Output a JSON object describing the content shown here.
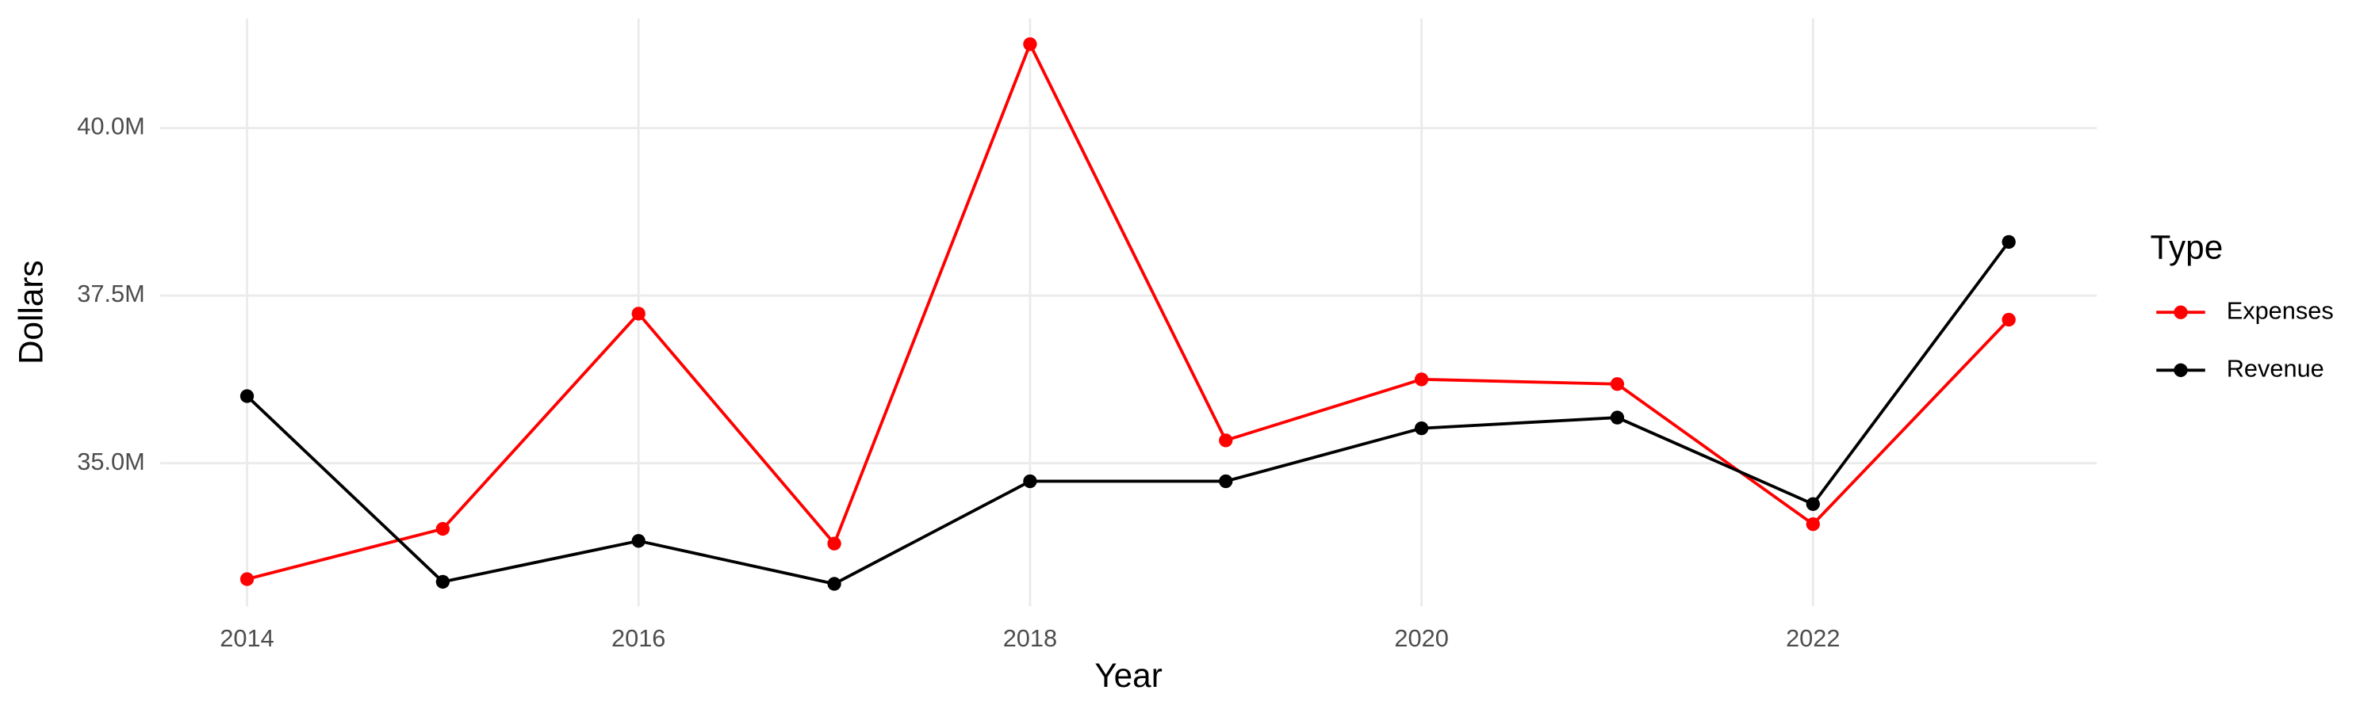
{
  "chart_data": {
    "type": "line",
    "x_label": "Year",
    "y_label": "Dollars",
    "legend_title": "Type",
    "legend": "right",
    "grid": true,
    "x": [
      2014,
      2015,
      2016,
      2017,
      2018,
      2019,
      2020,
      2021,
      2022,
      2023
    ],
    "series": [
      {
        "name": "Expenses",
        "color": "#ff0000",
        "values": [
          33270000,
          34020000,
          37230000,
          33800000,
          41250000,
          35340000,
          36250000,
          36180000,
          34090000,
          37140000
        ]
      },
      {
        "name": "Revenue",
        "color": "#000000",
        "values": [
          36000000,
          33230000,
          33840000,
          33200000,
          34730000,
          34730000,
          35520000,
          35680000,
          34390000,
          38300000
        ]
      }
    ],
    "xlim": [
      2013.556,
      2023.45
    ],
    "xticks": [
      2014,
      2016,
      2018,
      2020,
      2022
    ],
    "ylim": [
      32864000,
      41636000
    ],
    "yticks": [
      {
        "value": 35000000,
        "label": "35.0M"
      },
      {
        "value": 37500000,
        "label": "37.5M"
      },
      {
        "value": 40000000,
        "label": "40.0M"
      }
    ]
  }
}
